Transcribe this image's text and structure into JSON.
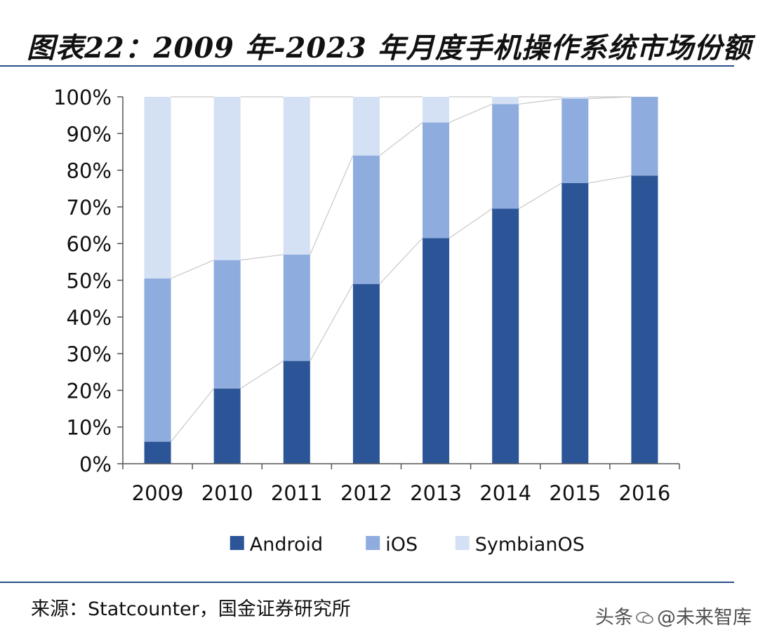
{
  "figure": {
    "title": "图表22：2009 年-2023 年月度手机操作系统市场份额",
    "source": "来源：Statcounter，国金证券研究所",
    "watermark_prefix": "头条",
    "watermark_handle": "@未来智库"
  },
  "chart_data": {
    "type": "bar",
    "stacked": true,
    "title": "",
    "xlabel": "",
    "ylabel": "",
    "categories": [
      "2009",
      "2010",
      "2011",
      "2012",
      "2013",
      "2014",
      "2015",
      "2016"
    ],
    "series": [
      {
        "name": "Android",
        "color": "#2c5597",
        "values": [
          6,
          20.5,
          28,
          49,
          61.5,
          69.5,
          76.5,
          78.5
        ]
      },
      {
        "name": "iOS",
        "color": "#8eacde",
        "values": [
          44.5,
          35,
          29,
          35,
          31.5,
          28.5,
          23,
          21.5
        ]
      },
      {
        "name": "SymbianOS",
        "color": "#d4e0f4",
        "values": [
          49.5,
          44.5,
          43,
          16,
          7,
          2,
          0.5,
          0
        ]
      }
    ],
    "ylim": [
      0,
      100
    ],
    "yticks": [
      "0%",
      "10%",
      "20%",
      "30%",
      "40%",
      "50%",
      "60%",
      "70%",
      "80%",
      "90%",
      "100%"
    ],
    "legend_position": "bottom",
    "connector_lines": true,
    "grid": false
  }
}
